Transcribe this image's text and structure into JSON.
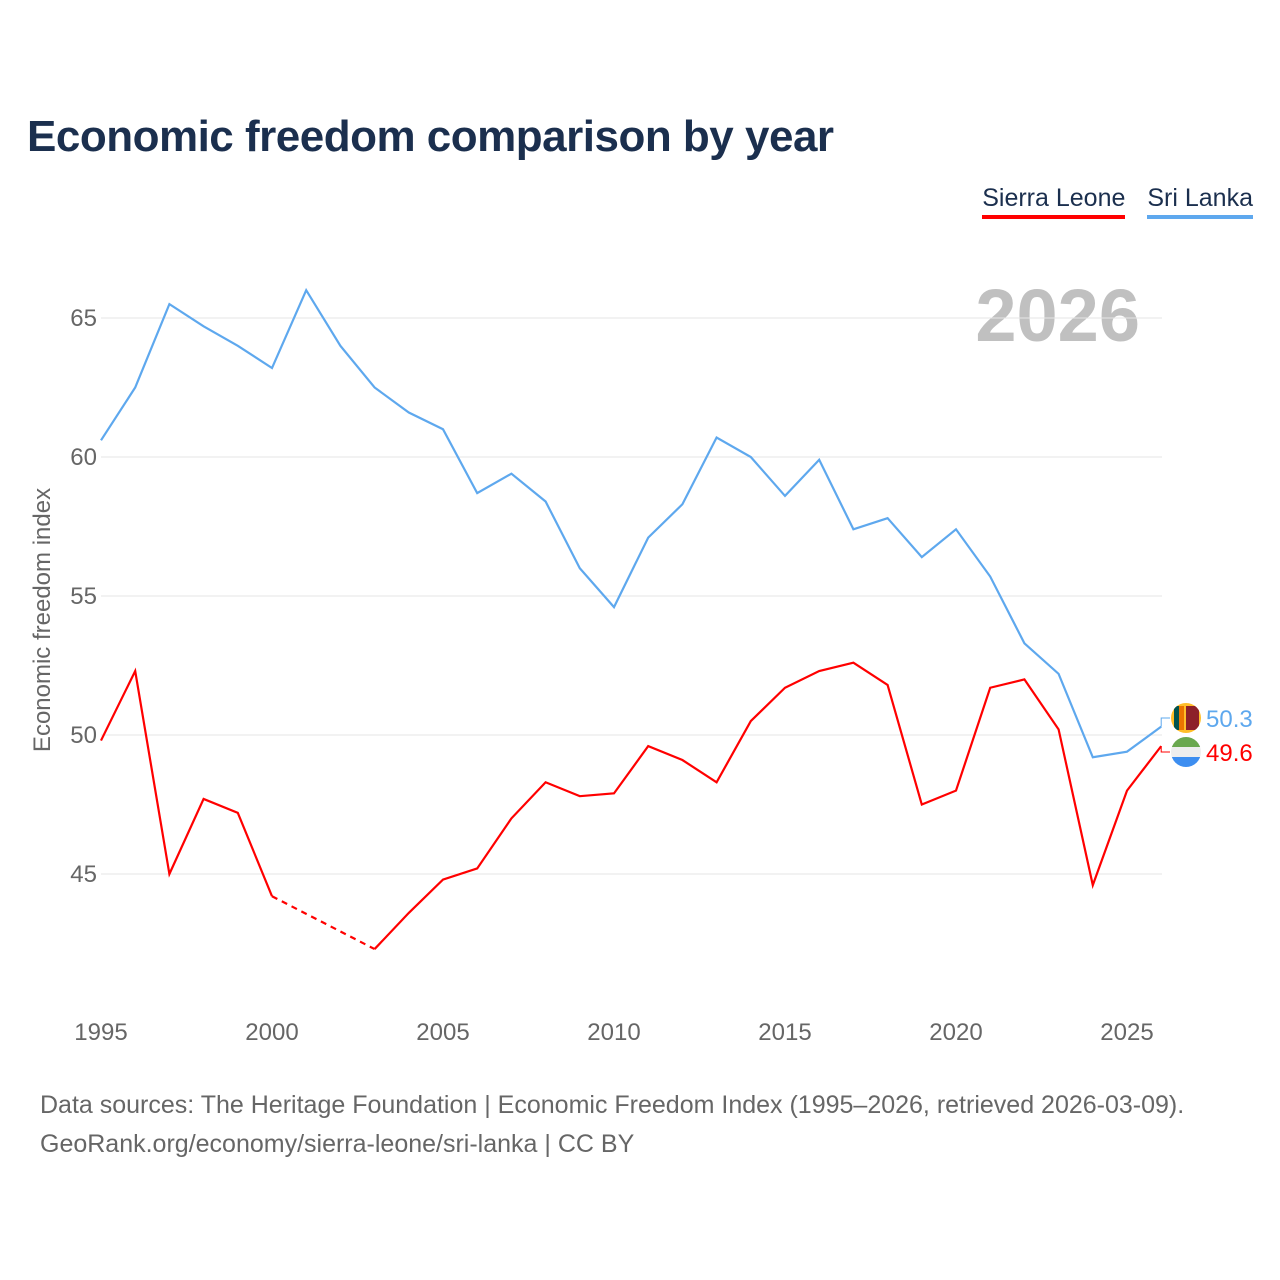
{
  "chart_data": {
    "type": "line",
    "title": "Economic freedom comparison by year",
    "xlabel": "",
    "ylabel": "Economic freedom index",
    "year_watermark": "2026",
    "x": [
      1995,
      1996,
      1997,
      1998,
      1999,
      2000,
      2001,
      2002,
      2003,
      2004,
      2005,
      2006,
      2007,
      2008,
      2009,
      2010,
      2011,
      2012,
      2013,
      2014,
      2015,
      2016,
      2017,
      2018,
      2019,
      2020,
      2021,
      2022,
      2023,
      2024,
      2025,
      2026
    ],
    "xticks": [
      "1995",
      "2000",
      "2005",
      "2010",
      "2015",
      "2020",
      "2025"
    ],
    "yticks": [
      "45",
      "50",
      "55",
      "60",
      "65"
    ],
    "xlim": [
      1995,
      2026
    ],
    "ylim": [
      40,
      68
    ],
    "grid": true,
    "legend_position": "top-right",
    "series": [
      {
        "name": "Sierra Leone",
        "color": "#ff0000",
        "end_label": "49.6",
        "values": [
          49.8,
          52.3,
          45.0,
          47.7,
          47.2,
          44.2,
          null,
          null,
          42.3,
          43.6,
          44.8,
          45.2,
          47.0,
          48.3,
          47.8,
          47.9,
          49.6,
          49.1,
          48.3,
          50.5,
          51.7,
          52.3,
          52.6,
          51.8,
          47.5,
          48.0,
          51.7,
          52.0,
          50.2,
          44.6,
          48.0,
          49.6
        ]
      },
      {
        "name": "Sri Lanka",
        "color": "#5ea8ee",
        "end_label": "50.3",
        "values": [
          60.6,
          62.5,
          65.5,
          64.7,
          64.0,
          63.2,
          66.0,
          64.0,
          62.5,
          61.6,
          61.0,
          58.7,
          59.4,
          58.4,
          56.0,
          54.6,
          57.1,
          58.3,
          60.7,
          60.0,
          58.6,
          59.9,
          57.4,
          57.8,
          56.4,
          57.4,
          55.7,
          53.3,
          52.2,
          49.2,
          49.4,
          50.3
        ]
      }
    ]
  },
  "footer": {
    "line1": "Data sources: The Heritage Foundation | Economic Freedom Index (1995–2026, retrieved 2026-03-09).",
    "line2": "GeoRank.org/economy/sierra-leone/sri-lanka | CC BY"
  }
}
